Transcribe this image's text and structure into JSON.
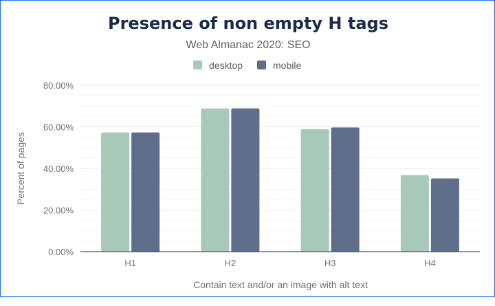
{
  "chart_data": {
    "type": "bar",
    "title": "Presence of non empty H tags",
    "subtitle": "Web Almanac 2020: SEO",
    "xlabel": "Contain text and/or an image with alt text",
    "ylabel": "Percent of pages",
    "categories": [
      "H1",
      "H2",
      "H3",
      "H4"
    ],
    "series": [
      {
        "name": "desktop",
        "color": "#a8c9ba",
        "values": [
          57.3,
          68.9,
          58.9,
          36.8
        ]
      },
      {
        "name": "mobile",
        "color": "#5f6e8a",
        "values": [
          57.3,
          68.9,
          59.7,
          35.2
        ]
      }
    ],
    "ylim": [
      0,
      80
    ],
    "yticks": [
      "0.00%",
      "20.00%",
      "40.00%",
      "60.00%",
      "80.00%"
    ],
    "legend_position": "top-center",
    "grid": true
  }
}
